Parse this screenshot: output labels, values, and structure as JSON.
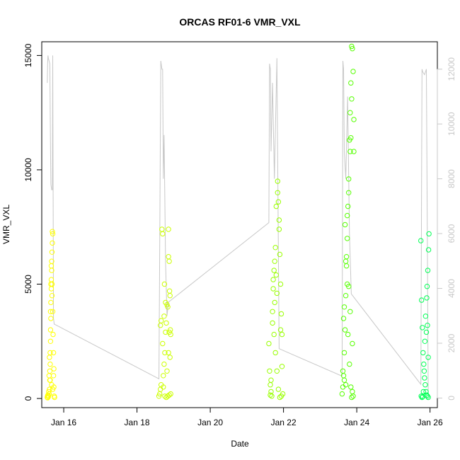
{
  "chart_data": {
    "type": "scatter",
    "title": "ORCAS RF01-6 VMR_VXL",
    "xlabel": "Date",
    "ylabel": "VMR_VXL",
    "xlim": [
      15.4,
      26.2
    ],
    "ylim": [
      -400,
      15600
    ],
    "y2lim": [
      -350,
      13000
    ],
    "x_tick_labels": [
      {
        "x": 16,
        "label": "Jan 16"
      },
      {
        "x": 18,
        "label": "Jan 18"
      },
      {
        "x": 20,
        "label": "Jan 20"
      },
      {
        "x": 22,
        "label": "Jan 22"
      },
      {
        "x": 24,
        "label": "Jan 24"
      },
      {
        "x": 26,
        "label": "Jan 26"
      }
    ],
    "y_ticks": [
      0,
      5000,
      10000,
      15000
    ],
    "y_tick_labels": [
      "0",
      "5000",
      "10000",
      "15000"
    ],
    "y2_ticks": [
      0,
      2000,
      4000,
      6000,
      8000,
      10000,
      12000
    ],
    "y2_tick_labels": [
      "0",
      "2000",
      "4000",
      "6000",
      "8000",
      "10000",
      "12000"
    ],
    "grid": false,
    "colors": {
      "flight1": "#ffff00",
      "flight2": "#ccff00",
      "flight3": "#99ff00",
      "flight4": "#55ff00",
      "flight5": "#00ff55",
      "altitude": "#c8c8c8"
    },
    "altitude_series": [
      [
        15.55,
        11500
      ],
      [
        15.56,
        12200
      ],
      [
        15.57,
        12500
      ],
      [
        15.58,
        12400
      ],
      [
        15.6,
        12300
      ],
      [
        15.62,
        12200
      ],
      [
        15.64,
        9000
      ],
      [
        15.65,
        7800
      ],
      [
        15.67,
        7600
      ],
      [
        15.69,
        7600
      ],
      [
        15.7,
        12500
      ],
      [
        15.72,
        2900
      ],
      [
        15.74,
        2700
      ],
      [
        18.6,
        700
      ],
      [
        18.65,
        12300
      ],
      [
        18.68,
        12000
      ],
      [
        18.7,
        12000
      ],
      [
        18.72,
        8000
      ],
      [
        18.74,
        9600
      ],
      [
        18.78,
        5000
      ],
      [
        18.82,
        3000
      ],
      [
        18.86,
        3500
      ],
      [
        21.6,
        6400
      ],
      [
        21.62,
        12200
      ],
      [
        21.64,
        12000
      ],
      [
        21.66,
        9000
      ],
      [
        21.7,
        11500
      ],
      [
        21.75,
        8000
      ],
      [
        21.82,
        12400
      ],
      [
        21.88,
        1800
      ],
      [
        23.6,
        800
      ],
      [
        23.62,
        12300
      ],
      [
        23.64,
        12000
      ],
      [
        23.66,
        9000
      ],
      [
        23.7,
        8000
      ],
      [
        23.75,
        11000
      ],
      [
        23.8,
        6000
      ],
      [
        23.85,
        3800
      ],
      [
        25.75,
        500
      ],
      [
        25.78,
        12000
      ],
      [
        25.8,
        11900
      ],
      [
        25.85,
        11800
      ],
      [
        25.9,
        12000
      ],
      [
        25.95,
        100
      ]
    ],
    "series": [
      {
        "color_key": "flight1",
        "points": [
          [
            15.55,
            50
          ],
          [
            15.56,
            100
          ],
          [
            15.57,
            150
          ],
          [
            15.58,
            80
          ],
          [
            15.6,
            200
          ],
          [
            15.61,
            400
          ],
          [
            15.62,
            800
          ],
          [
            15.62,
            1200
          ],
          [
            15.63,
            1500
          ],
          [
            15.63,
            2000
          ],
          [
            15.64,
            2500
          ],
          [
            15.64,
            3000
          ],
          [
            15.65,
            3500
          ],
          [
            15.65,
            4200
          ],
          [
            15.66,
            4800
          ],
          [
            15.66,
            5200
          ],
          [
            15.67,
            5600
          ],
          [
            15.67,
            6000
          ],
          [
            15.68,
            5000
          ],
          [
            15.68,
            4500
          ],
          [
            15.69,
            7300
          ],
          [
            15.7,
            7200
          ],
          [
            15.7,
            3800
          ],
          [
            15.71,
            2800
          ],
          [
            15.72,
            2000
          ],
          [
            15.72,
            1000
          ],
          [
            15.73,
            500
          ],
          [
            15.74,
            100
          ],
          [
            15.75,
            50
          ],
          [
            15.59,
            300
          ],
          [
            15.61,
            1800
          ],
          [
            15.64,
            3800
          ],
          [
            15.66,
            5800
          ],
          [
            15.69,
            6800
          ],
          [
            15.63,
            800
          ],
          [
            15.67,
            600
          ],
          [
            15.7,
            400
          ],
          [
            15.56,
            30
          ],
          [
            15.73,
            1300
          ],
          [
            15.65,
            5000
          ],
          [
            15.68,
            6400
          ],
          [
            15.6,
            1000
          ]
        ]
      },
      {
        "color_key": "flight2",
        "points": [
          [
            18.6,
            100
          ],
          [
            18.62,
            200
          ],
          [
            18.64,
            400
          ],
          [
            18.66,
            600
          ],
          [
            18.68,
            7400
          ],
          [
            18.7,
            7200
          ],
          [
            18.72,
            1000
          ],
          [
            18.74,
            1500
          ],
          [
            18.76,
            2000
          ],
          [
            18.78,
            2900
          ],
          [
            18.8,
            3300
          ],
          [
            18.82,
            4100
          ],
          [
            18.84,
            4000
          ],
          [
            18.86,
            6200
          ],
          [
            18.88,
            6000
          ],
          [
            18.9,
            4500
          ],
          [
            18.92,
            2800
          ],
          [
            18.92,
            200
          ],
          [
            18.88,
            150
          ],
          [
            18.84,
            100
          ],
          [
            18.8,
            50
          ],
          [
            18.76,
            100
          ],
          [
            18.72,
            500
          ],
          [
            18.7,
            2400
          ],
          [
            18.74,
            3600
          ],
          [
            18.78,
            4200
          ],
          [
            18.82,
            1200
          ],
          [
            18.86,
            2000
          ],
          [
            18.9,
            1800
          ],
          [
            18.66,
            3400
          ],
          [
            18.64,
            3200
          ],
          [
            18.86,
            7400
          ],
          [
            18.89,
            4700
          ],
          [
            18.91,
            3000
          ],
          [
            18.88,
            2900
          ],
          [
            18.75,
            5000
          ]
        ]
      },
      {
        "color_key": "flight3",
        "points": [
          [
            21.6,
            2400
          ],
          [
            21.62,
            1200
          ],
          [
            21.64,
            600
          ],
          [
            21.66,
            300
          ],
          [
            21.68,
            100
          ],
          [
            21.7,
            3800
          ],
          [
            21.72,
            4800
          ],
          [
            21.74,
            5600
          ],
          [
            21.76,
            6000
          ],
          [
            21.78,
            6600
          ],
          [
            21.8,
            5400
          ],
          [
            21.82,
            4600
          ],
          [
            21.84,
            9500
          ],
          [
            21.86,
            8600
          ],
          [
            21.88,
            7400
          ],
          [
            21.9,
            6300
          ],
          [
            21.92,
            5000
          ],
          [
            21.94,
            3700
          ],
          [
            21.96,
            2800
          ],
          [
            21.98,
            200
          ],
          [
            21.94,
            100
          ],
          [
            21.9,
            50
          ],
          [
            21.86,
            400
          ],
          [
            21.82,
            1200
          ],
          [
            21.78,
            2000
          ],
          [
            21.74,
            2800
          ],
          [
            21.7,
            3300
          ],
          [
            21.8,
            8400
          ],
          [
            21.84,
            9000
          ],
          [
            21.92,
            3000
          ],
          [
            21.88,
            7800
          ],
          [
            21.76,
            4200
          ],
          [
            21.66,
            800
          ],
          [
            21.72,
            5200
          ],
          [
            21.96,
            1400
          ],
          [
            21.64,
            150
          ]
        ]
      },
      {
        "color_key": "flight4",
        "points": [
          [
            23.6,
            200
          ],
          [
            23.62,
            500
          ],
          [
            23.64,
            1000
          ],
          [
            23.66,
            2000
          ],
          [
            23.68,
            3000
          ],
          [
            23.7,
            4500
          ],
          [
            23.72,
            5800
          ],
          [
            23.74,
            7000
          ],
          [
            23.76,
            8400
          ],
          [
            23.78,
            9600
          ],
          [
            23.8,
            11300
          ],
          [
            23.82,
            12500
          ],
          [
            23.84,
            13800
          ],
          [
            23.86,
            15400
          ],
          [
            23.88,
            15300
          ],
          [
            23.9,
            14300
          ],
          [
            23.92,
            12200
          ],
          [
            23.82,
            10800
          ],
          [
            23.78,
            9000
          ],
          [
            23.74,
            8000
          ],
          [
            23.7,
            6000
          ],
          [
            23.66,
            4000
          ],
          [
            23.62,
            1200
          ],
          [
            23.88,
            300
          ],
          [
            23.9,
            100
          ],
          [
            23.86,
            50
          ],
          [
            23.84,
            500
          ],
          [
            23.8,
            1500
          ],
          [
            23.76,
            2800
          ],
          [
            23.72,
            6200
          ],
          [
            23.68,
            7600
          ],
          [
            23.64,
            3500
          ],
          [
            23.86,
            13100
          ],
          [
            23.84,
            11400
          ],
          [
            23.92,
            10800
          ],
          [
            23.74,
            5000
          ],
          [
            23.78,
            4900
          ],
          [
            23.82,
            3800
          ],
          [
            23.88,
            2400
          ],
          [
            23.66,
            800
          ],
          [
            23.7,
            600
          ]
        ]
      },
      {
        "color_key": "flight5",
        "points": [
          [
            25.75,
            6900
          ],
          [
            25.77,
            4300
          ],
          [
            25.79,
            3100
          ],
          [
            25.81,
            2000
          ],
          [
            25.83,
            1500
          ],
          [
            25.85,
            900
          ],
          [
            25.87,
            600
          ],
          [
            25.89,
            300
          ],
          [
            25.91,
            150
          ],
          [
            25.93,
            100
          ],
          [
            25.95,
            50
          ],
          [
            25.9,
            2900
          ],
          [
            25.92,
            4900
          ],
          [
            25.94,
            5600
          ],
          [
            25.96,
            6500
          ],
          [
            25.97,
            7200
          ],
          [
            25.88,
            3600
          ],
          [
            25.86,
            2500
          ],
          [
            25.84,
            1200
          ],
          [
            25.82,
            300
          ],
          [
            25.8,
            80
          ],
          [
            25.78,
            50
          ],
          [
            25.76,
            100
          ],
          [
            25.95,
            1800
          ],
          [
            25.93,
            3200
          ],
          [
            25.91,
            4400
          ]
        ]
      }
    ]
  }
}
